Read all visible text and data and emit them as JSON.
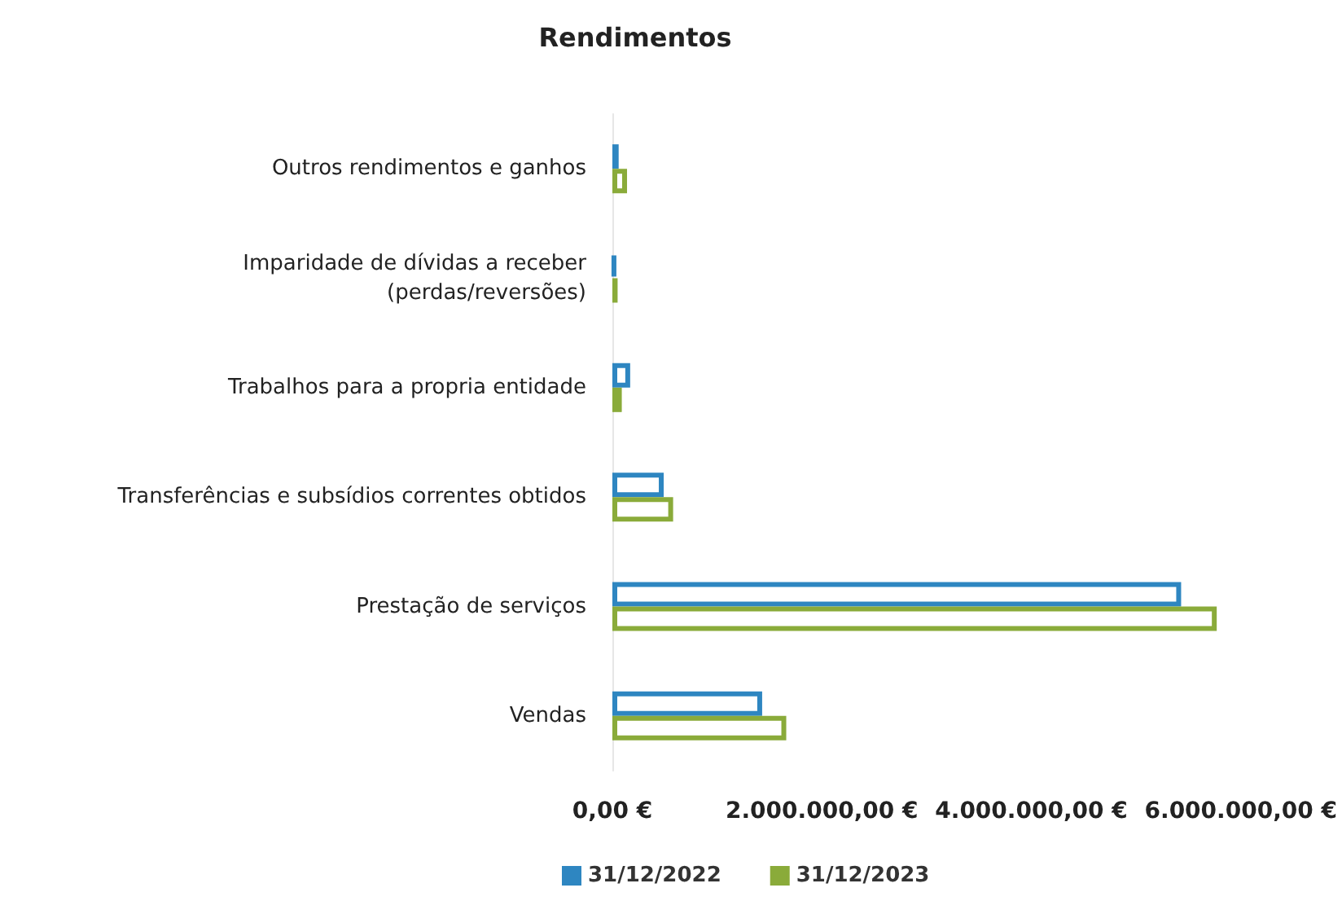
{
  "chart_data": {
    "type": "bar",
    "orientation": "horizontal",
    "title": "Rendimentos",
    "categories": [
      "Outros rendimentos e ganhos",
      "Imparidade de dívidas a receber\n(perdas/reversões)",
      "Trabalhos para a propria entidade",
      "Transferências e subsídios correntes obtidos",
      "Prestação de serviços",
      "Vendas"
    ],
    "series": [
      {
        "name": "31/12/2022",
        "color": "#2e86c1",
        "values": [
          60000,
          30000,
          170000,
          490000,
          5430000,
          1430000
        ]
      },
      {
        "name": "31/12/2023",
        "color": "#8aab3a",
        "values": [
          140000,
          50000,
          90000,
          580000,
          5770000,
          1660000
        ]
      }
    ],
    "xlim": [
      0,
      6000000
    ],
    "xticks": [
      {
        "value": 0,
        "label": "0,00 €"
      },
      {
        "value": 2000000,
        "label": "2.000.000,00 €"
      },
      {
        "value": 4000000,
        "label": "4.000.000,00 €"
      },
      {
        "value": 6000000,
        "label": "6.000.000,00 €"
      }
    ],
    "grid": false,
    "legend": "bottom"
  }
}
